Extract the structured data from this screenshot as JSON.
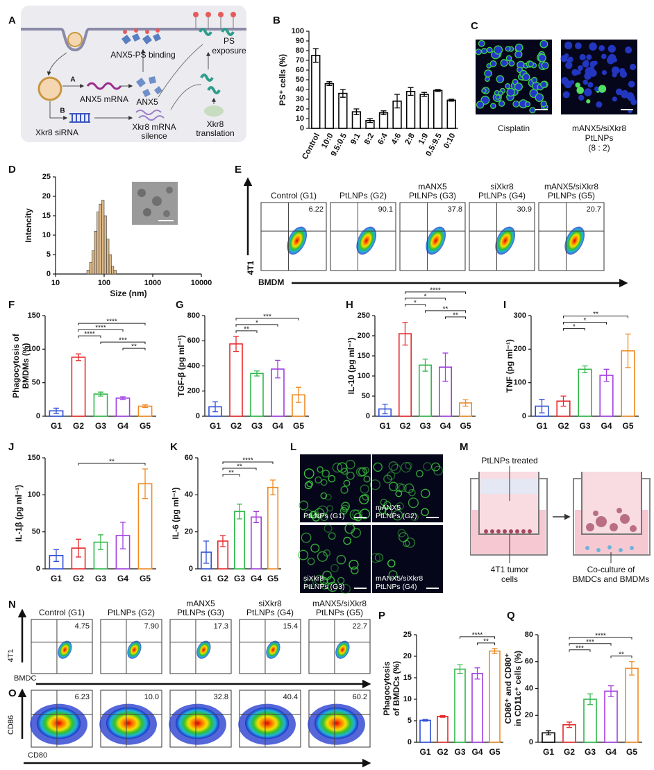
{
  "panel_labels": [
    "A",
    "B",
    "C",
    "D",
    "E",
    "F",
    "G",
    "H",
    "I",
    "J",
    "K",
    "L",
    "M",
    "N",
    "O",
    "P",
    "Q"
  ],
  "schematic_a": {
    "ps_binding": "ANX5-PS binding",
    "ps_exposure": [
      "PS",
      "exposure"
    ],
    "route_a": "A",
    "anx5_mrna": "ANX5 mRNA",
    "anx5": "ANX5",
    "route_b": "B",
    "xkr8_sirna": "Xkr8 siRNA",
    "xkr8_silence": [
      "Xkr8 mRNA",
      "silence"
    ],
    "xkr8_translation": [
      "Xkr8",
      "translation"
    ]
  },
  "images_c": {
    "captions": [
      [
        "Cisplatin"
      ],
      [
        "mANX5/siXkr8",
        "PtLNPs",
        "(8 : 2)"
      ]
    ]
  },
  "flow_e": {
    "y_axis": "4T1",
    "x_axis": "BMDM",
    "plots": [
      {
        "label": [
          "Control (G1)"
        ],
        "value": "6.22"
      },
      {
        "label": [
          "PtLNPs (G2)"
        ],
        "value": "90.1"
      },
      {
        "label": [
          "mANX5",
          "PtLNPs (G3)"
        ],
        "value": "37.8"
      },
      {
        "label": [
          "siXkr8",
          "PtLNPs (G4)"
        ],
        "value": "30.9"
      },
      {
        "label": [
          "mANX5/siXkr8",
          "PtLNPs (G5)"
        ],
        "value": "20.7"
      }
    ]
  },
  "images_l": {
    "captions": [
      [
        "PtLNPs (G1)"
      ],
      [
        "mANX5",
        "PtLNPs (G2)"
      ],
      [
        "siXkr8",
        "PtLNPs (G3)"
      ],
      [
        "mANX5/siXkr8",
        "PtLNPs (G4)"
      ]
    ]
  },
  "schematic_m": {
    "treated": "PtLNPs treated",
    "tumor_cells": [
      "4T1 tumor",
      "cells"
    ],
    "coculture": [
      "Co-culture of",
      "BMDCs and BMDMs"
    ]
  },
  "flow_n": {
    "y_axis": "4T1",
    "x_axis": "BMDC",
    "plots": [
      {
        "label": [
          "Control (G1)"
        ],
        "value": "4.75"
      },
      {
        "label": [
          "PtLNPs (G2)"
        ],
        "value": "7.90"
      },
      {
        "label": [
          "mANX5",
          "PtLNPs (G3)"
        ],
        "value": "17.3"
      },
      {
        "label": [
          "siXkr8",
          "PtLNPs (G4)"
        ],
        "value": "15.4"
      },
      {
        "label": [
          "mANX5/siXkr8",
          "PtLNPs (G5)"
        ],
        "value": "22.7"
      }
    ]
  },
  "flow_o": {
    "y_axis": "CD86",
    "x_axis": "CD80",
    "plots": [
      {
        "value": "6.23"
      },
      {
        "value": "10.0"
      },
      {
        "value": "32.8"
      },
      {
        "value": "40.4"
      },
      {
        "value": "60.2"
      }
    ]
  },
  "chart_data": [
    {
      "type": "bar",
      "ylabel": [
        "PS⁺ cells (%)"
      ],
      "categories": [
        "Control",
        "10:0",
        "9.5:0.5",
        "9:1",
        "8:2",
        "6:4",
        "4:6",
        "2:8",
        "1:9",
        "0.5:9.5",
        "0:10"
      ],
      "values": [
        75,
        46,
        36,
        17,
        8,
        16,
        28,
        38,
        35,
        39,
        29
      ],
      "errors": [
        7,
        2,
        4,
        3,
        2,
        2,
        7,
        4,
        2,
        1,
        1
      ],
      "color": "#000000",
      "ylim": [
        0,
        100
      ],
      "yticks": [
        0,
        10,
        20,
        30,
        40,
        50,
        60,
        70,
        80,
        90,
        100
      ]
    },
    {
      "type": "histogram",
      "ylabel": [
        "Intencity"
      ],
      "xlabel": "Size (nm)",
      "bins": [
        44,
        50,
        56,
        63,
        71,
        79,
        89,
        100,
        112,
        126,
        141,
        158,
        178
      ],
      "counts": [
        1,
        3,
        6,
        11,
        16,
        18,
        19,
        15,
        9,
        5,
        2,
        1
      ],
      "color": "#dcb98a",
      "xscale": "log",
      "xlim": [
        10,
        10000
      ],
      "xticks": [
        10,
        100,
        1000,
        10000
      ],
      "ylim": [
        0,
        25
      ],
      "yticks": [
        0,
        5,
        10,
        15,
        20,
        25
      ]
    },
    {
      "type": "bar",
      "ylabel": [
        "Phagocytosis of",
        "BMDMs (%)"
      ],
      "categories": [
        "G1",
        "G2",
        "G3",
        "G4",
        "G5"
      ],
      "values": [
        8,
        88,
        33,
        27,
        15
      ],
      "errors": [
        4,
        5,
        3,
        2,
        2
      ],
      "colors": [
        "#2f4fd8",
        "#e8282b",
        "#2fb84a",
        "#a23ee0",
        "#f08a24"
      ],
      "ylim": [
        0,
        150
      ],
      "yticks": [
        0,
        50,
        100,
        150
      ],
      "annotations": [
        "**",
        "***",
        "****",
        "****",
        "****"
      ]
    },
    {
      "type": "bar",
      "ylabel": [
        "TGF-β (pg ml⁻¹)"
      ],
      "categories": [
        "G1",
        "G2",
        "G3",
        "G4",
        "G5"
      ],
      "values": [
        75,
        575,
        340,
        375,
        170
      ],
      "errors": [
        40,
        60,
        20,
        70,
        60
      ],
      "colors": [
        "#2f4fd8",
        "#e8282b",
        "#2fb84a",
        "#a23ee0",
        "#f08a24"
      ],
      "ylim": [
        0,
        800
      ],
      "yticks": [
        0,
        200,
        400,
        600,
        800
      ],
      "annotations": [
        "**",
        "*",
        "***"
      ]
    },
    {
      "type": "bar",
      "ylabel": [
        "IL-10 (pg ml⁻¹)"
      ],
      "categories": [
        "G1",
        "G2",
        "G3",
        "G4",
        "G5"
      ],
      "values": [
        18,
        205,
        127,
        122,
        33
      ],
      "errors": [
        12,
        28,
        15,
        35,
        8
      ],
      "colors": [
        "#2f4fd8",
        "#e8282b",
        "#2fb84a",
        "#a23ee0",
        "#f08a24"
      ],
      "ylim": [
        0,
        250
      ],
      "yticks": [
        0,
        50,
        100,
        150,
        200,
        250
      ],
      "annotations": [
        "**",
        "**",
        "*",
        "*",
        "****"
      ]
    },
    {
      "type": "bar",
      "ylabel": [
        "TNF (pg ml⁻¹)"
      ],
      "categories": [
        "G1",
        "G2",
        "G3",
        "G4",
        "G5"
      ],
      "values": [
        30,
        45,
        140,
        122,
        195
      ],
      "errors": [
        20,
        15,
        10,
        18,
        50
      ],
      "colors": [
        "#2f4fd8",
        "#e8282b",
        "#2fb84a",
        "#a23ee0",
        "#f08a24"
      ],
      "ylim": [
        0,
        300
      ],
      "yticks": [
        0,
        100,
        200,
        300
      ],
      "annotations": [
        "*",
        "*",
        "**"
      ]
    },
    {
      "type": "bar",
      "ylabel": [
        "IL-1β (pg ml⁻¹)"
      ],
      "categories": [
        "G1",
        "G2",
        "G3",
        "G4",
        "G5"
      ],
      "values": [
        18,
        28,
        36,
        45,
        115
      ],
      "errors": [
        8,
        12,
        10,
        18,
        20
      ],
      "colors": [
        "#2f4fd8",
        "#e8282b",
        "#2fb84a",
        "#a23ee0",
        "#f08a24"
      ],
      "ylim": [
        0,
        150
      ],
      "yticks": [
        0,
        50,
        100,
        150
      ],
      "annotations": [
        "**"
      ]
    },
    {
      "type": "bar",
      "ylabel": [
        "IL-6 (pg ml⁻¹)"
      ],
      "categories": [
        "G1",
        "G2",
        "G3",
        "G4",
        "G5"
      ],
      "values": [
        9,
        15,
        31,
        28,
        44
      ],
      "errors": [
        6,
        3,
        4,
        3,
        4
      ],
      "colors": [
        "#2f4fd8",
        "#e8282b",
        "#2fb84a",
        "#a23ee0",
        "#f08a24"
      ],
      "ylim": [
        0,
        60
      ],
      "yticks": [
        0,
        20,
        40,
        60
      ],
      "annotations": [
        "**",
        "**",
        "****"
      ]
    },
    {
      "type": "bar",
      "ylabel": [
        "Phagocytosis",
        "of BMDCs (%)"
      ],
      "categories": [
        "G1",
        "G2",
        "G3",
        "G4",
        "G5"
      ],
      "values": [
        5.1,
        6,
        17,
        16,
        21.2
      ],
      "errors": [
        0.2,
        0.2,
        1,
        1.3,
        0.6
      ],
      "colors": [
        "#2f4fd8",
        "#e8282b",
        "#2fb84a",
        "#a23ee0",
        "#f08a24"
      ],
      "ylim": [
        0,
        25
      ],
      "yticks": [
        0,
        5,
        10,
        15,
        20,
        25
      ],
      "annotations": [
        "**",
        "****"
      ]
    },
    {
      "type": "bar",
      "ylabel": [
        "CD86⁺ and CD80⁺",
        "in CD11c⁺ cells (%)"
      ],
      "categories": [
        "G1",
        "G2",
        "G3",
        "G4",
        "G5"
      ],
      "values": [
        7,
        13,
        32,
        38,
        55
      ],
      "errors": [
        1.5,
        2,
        4,
        4,
        5
      ],
      "colors": [
        "#000000",
        "#e8282b",
        "#2fb84a",
        "#a23ee0",
        "#f08a24"
      ],
      "ylim": [
        0,
        80
      ],
      "yticks": [
        0,
        20,
        40,
        60,
        80
      ],
      "annotations": [
        "**",
        "***",
        "***",
        "****"
      ]
    }
  ]
}
